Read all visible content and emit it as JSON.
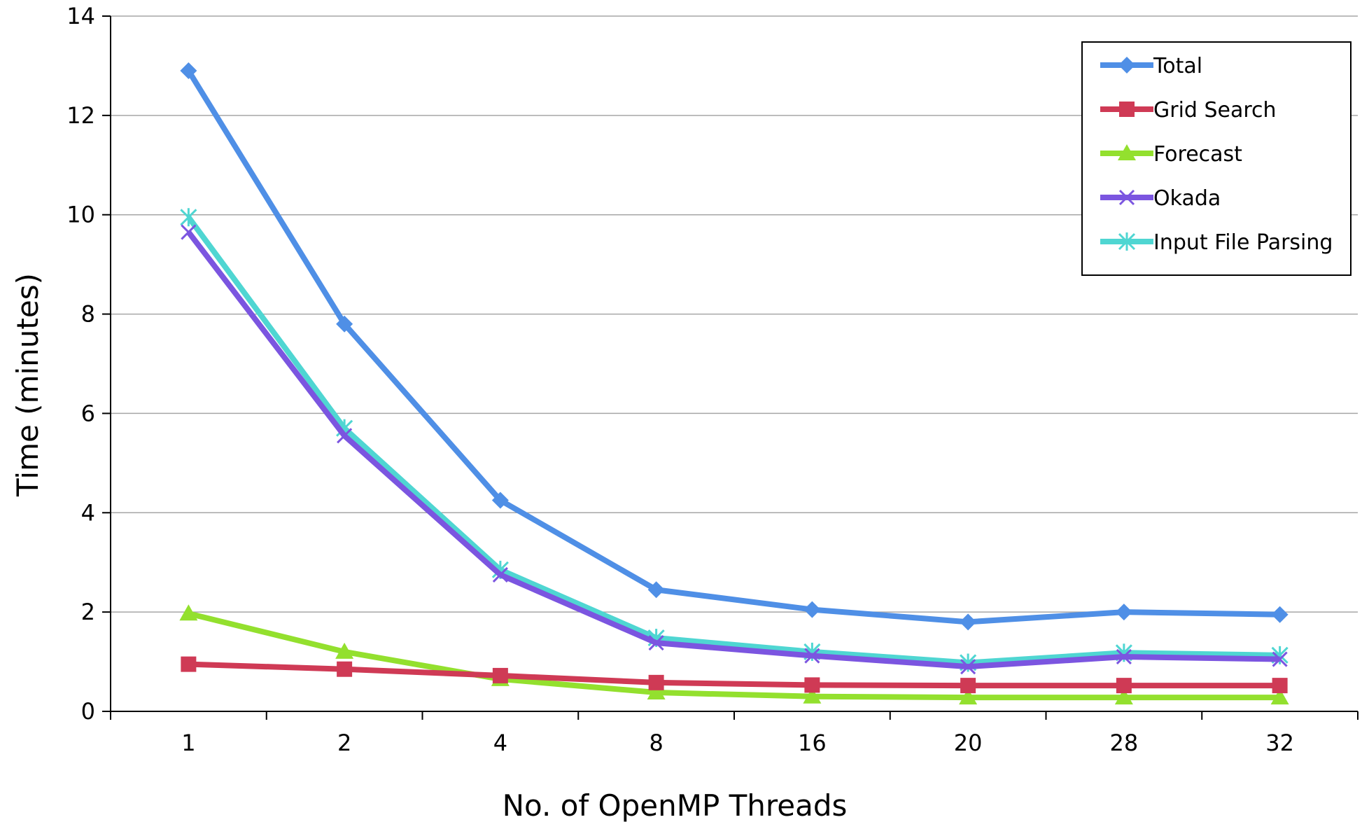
{
  "chart_data": {
    "type": "line",
    "title": "",
    "xlabel": "No. of OpenMP Threads",
    "ylabel": "Time (minutes)",
    "categories": [
      "1",
      "2",
      "4",
      "8",
      "16",
      "20",
      "28",
      "32"
    ],
    "ylim": [
      0,
      14
    ],
    "yticks": [
      "0",
      "2",
      "4",
      "6",
      "8",
      "10",
      "12",
      "14"
    ],
    "grid": "horizontal",
    "legend_position": "top-right",
    "series": [
      {
        "name": "Total",
        "color": "#4f8fe6",
        "marker": "diamond",
        "values": [
          12.9,
          7.8,
          4.25,
          2.45,
          2.05,
          1.8,
          2.0,
          1.95
        ]
      },
      {
        "name": "Grid Search",
        "color": "#cf3a55",
        "marker": "square",
        "values": [
          0.95,
          0.85,
          0.72,
          0.58,
          0.53,
          0.52,
          0.52,
          0.52
        ]
      },
      {
        "name": "Forecast",
        "color": "#93e02e",
        "marker": "triangle",
        "values": [
          1.97,
          1.2,
          0.65,
          0.38,
          0.3,
          0.28,
          0.28,
          0.28
        ]
      },
      {
        "name": "Okada",
        "color": "#7b55e0",
        "marker": "x",
        "values": [
          9.65,
          5.55,
          2.75,
          1.38,
          1.12,
          0.9,
          1.1,
          1.05
        ]
      },
      {
        "name": "Input File Parsing",
        "color": "#4fd6d2",
        "marker": "star",
        "values": [
          9.95,
          5.7,
          2.85,
          1.48,
          1.2,
          0.98,
          1.18,
          1.13
        ]
      }
    ]
  }
}
